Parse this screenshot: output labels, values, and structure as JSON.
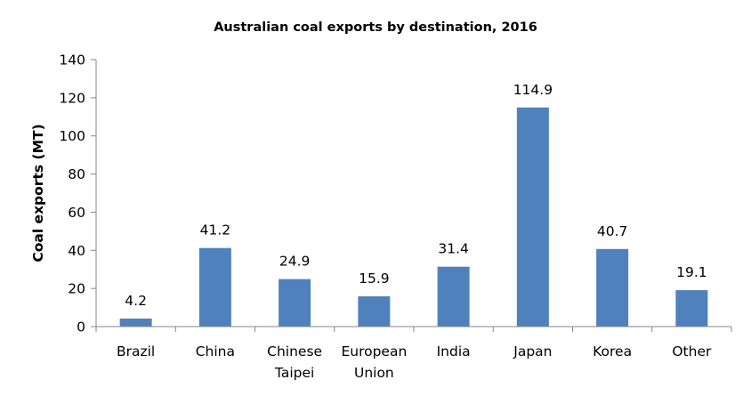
{
  "chart_data": {
    "type": "bar",
    "title": "Australian coal exports by destination, 2016",
    "xlabel": "",
    "ylabel": "Coal exports (MT)",
    "categories": [
      "Brazil",
      "China",
      "Chinese Taipei",
      "European Union",
      "India",
      "Japan",
      "Korea",
      "Other"
    ],
    "category_lines": [
      [
        "Brazil"
      ],
      [
        "China"
      ],
      [
        "Chinese",
        "Taipei"
      ],
      [
        "European",
        "Union"
      ],
      [
        "India"
      ],
      [
        "Japan"
      ],
      [
        "Korea"
      ],
      [
        "Other"
      ]
    ],
    "values": [
      4.2,
      41.2,
      24.9,
      15.9,
      31.4,
      114.9,
      40.7,
      19.1
    ],
    "data_labels": [
      "4.2",
      "41.2",
      "24.9",
      "15.9",
      "31.4",
      "114.9",
      "40.7",
      "19.1"
    ],
    "ylim": [
      0,
      140
    ],
    "yticks": [
      0,
      20,
      40,
      60,
      80,
      100,
      120,
      140
    ],
    "grid": false,
    "legend": null,
    "bar_color": "#4F81BD",
    "axis_color": "#878787"
  }
}
